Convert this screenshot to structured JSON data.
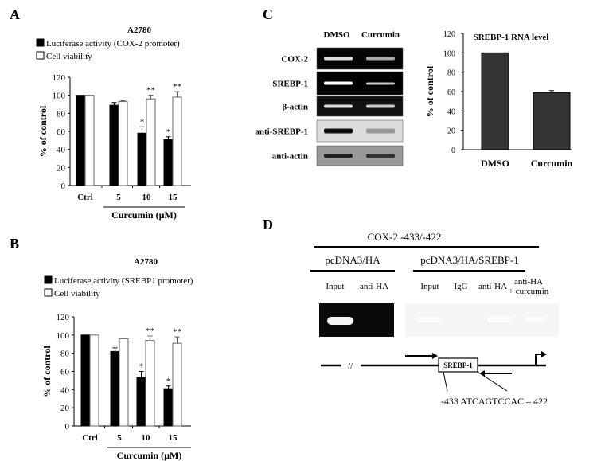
{
  "panels": {
    "a": "A",
    "b": "B",
    "c": "C",
    "d": "D"
  },
  "chart_data": [
    {
      "type": "bar",
      "panel": "A",
      "title": "A2780",
      "ylabel": "% of control",
      "xlabel": "Curcumin  (µM)",
      "categories": [
        "Ctrl",
        "5",
        "10",
        "15"
      ],
      "ylim": [
        0,
        120
      ],
      "yticks": [
        "0",
        "20",
        "40",
        "60",
        "80",
        "100",
        "120"
      ],
      "legend_placement": "top",
      "series": [
        {
          "name": "Luciferase activity (COX-2 promoter)",
          "color": "#000000",
          "values": [
            100,
            89,
            58,
            51
          ],
          "errors": [
            0,
            3,
            7,
            3
          ],
          "marks": [
            "",
            "",
            "*",
            "*"
          ]
        },
        {
          "name": "Cell viability",
          "color": "#ffffff",
          "values": [
            100,
            93,
            96,
            98
          ],
          "errors": [
            0,
            1,
            4,
            6
          ],
          "marks": [
            "",
            "",
            "**",
            "**"
          ]
        }
      ]
    },
    {
      "type": "bar",
      "panel": "B",
      "title": "A2780",
      "ylabel": "% of control",
      "xlabel": "Curcumin  (µM)",
      "categories": [
        "Ctrl",
        "5",
        "10",
        "15"
      ],
      "ylim": [
        0,
        120
      ],
      "yticks": [
        "0",
        "20",
        "40",
        "60",
        "80",
        "100",
        "120"
      ],
      "legend_placement": "top",
      "series": [
        {
          "name": "Luciferase activity (SREBP1 promoter)",
          "color": "#000000",
          "values": [
            100,
            82,
            53,
            41
          ],
          "errors": [
            0,
            4,
            7,
            3
          ],
          "marks": [
            "",
            "",
            "*",
            "*"
          ]
        },
        {
          "name": "Cell viability",
          "color": "#ffffff",
          "values": [
            100,
            96,
            94,
            91
          ],
          "errors": [
            0,
            0,
            5,
            7
          ],
          "marks": [
            "",
            "",
            "**",
            "**"
          ]
        }
      ]
    },
    {
      "type": "bar",
      "panel": "C",
      "title": "SREBP-1 RNA level",
      "ylabel": "% of  control",
      "categories": [
        "DMSO",
        "Curcumin"
      ],
      "ylim": [
        0,
        120
      ],
      "yticks": [
        "0",
        "20",
        "40",
        "60",
        "80",
        "100",
        "120"
      ],
      "series": [
        {
          "color": "#333333",
          "values": [
            100,
            59
          ],
          "errors": [
            0,
            2
          ]
        }
      ]
    }
  ],
  "blot": {
    "columns": [
      "DMSO",
      "Curcumin"
    ],
    "rows": [
      "COX-2",
      "SREBP-1",
      "β-actin",
      "anti-SREBP-1",
      "anti-actin"
    ]
  },
  "chip": {
    "title": "COX-2 -433/-422",
    "group1": "pcDNA3/HA",
    "group2": "pcDNA3/HA/SREBP-1",
    "lanes1": [
      "Input",
      "anti-HA"
    ],
    "lanes2": [
      "Input",
      "IgG",
      "anti-HA"
    ],
    "lane_last": [
      "anti-HA",
      "+ curcumin"
    ],
    "break_mark": "//",
    "box_label": "SREBP-1",
    "sequence": "-433 ATCAGTCCAC – 422"
  }
}
